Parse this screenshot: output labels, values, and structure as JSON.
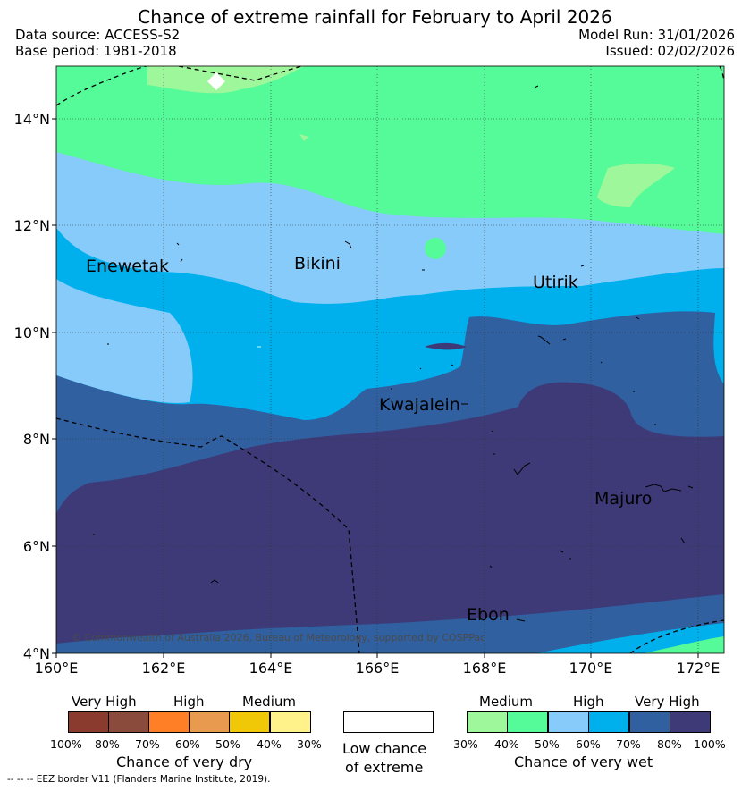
{
  "title": "Chance of extreme rainfall for February to April 2026",
  "header": {
    "data_source": "Data source: ACCESS-S2",
    "base_period": "Base period: 1981-2018",
    "model_run": "Model Run: 31/01/2026",
    "issued": "Issued: 02/02/2026"
  },
  "map": {
    "lat_labels": [
      "14°N",
      "12°N",
      "10°N",
      "8°N",
      "6°N",
      "4°N"
    ],
    "lon_labels": [
      "160°E",
      "162°E",
      "164°E",
      "166°E",
      "168°E",
      "170°E",
      "172°E"
    ],
    "places": {
      "enewetak": "Enewetak",
      "bikini": "Bikini",
      "utirik": "Utirik",
      "kwajalein": "Kwajalein",
      "majuro": "Majuro",
      "ebon": "Ebon"
    },
    "copyright": "© Commonwealth of Australia 2026, Bureau of Meteorology, supported by COSPPac"
  },
  "legend": {
    "dry": {
      "headers": [
        "Very High",
        "High",
        "Medium"
      ],
      "ticks": [
        "100%",
        "80%",
        "70%",
        "60%",
        "50%",
        "40%",
        "30%"
      ],
      "caption": "Chance of very dry",
      "colors": [
        "#8b3a2e",
        "#8a4a3c",
        "#ff7f27",
        "#e89b4f",
        "#f0c808",
        "#fff28a"
      ]
    },
    "low": {
      "caption_line1": "Low chance",
      "caption_line2": "of extreme",
      "color": "#ffffff"
    },
    "wet": {
      "headers": [
        "Medium",
        "High",
        "Very High"
      ],
      "ticks": [
        "30%",
        "40%",
        "50%",
        "60%",
        "70%",
        "80%",
        "100%"
      ],
      "caption": "Chance of very wet",
      "colors": [
        "#9ef79a",
        "#55fb98",
        "#87cbfa",
        "#00b0ed",
        "#3060a0",
        "#3e3a78"
      ]
    }
  },
  "footnote": "-- -- -- EEZ border V11 (Flanders Marine Institute, 2019)."
}
